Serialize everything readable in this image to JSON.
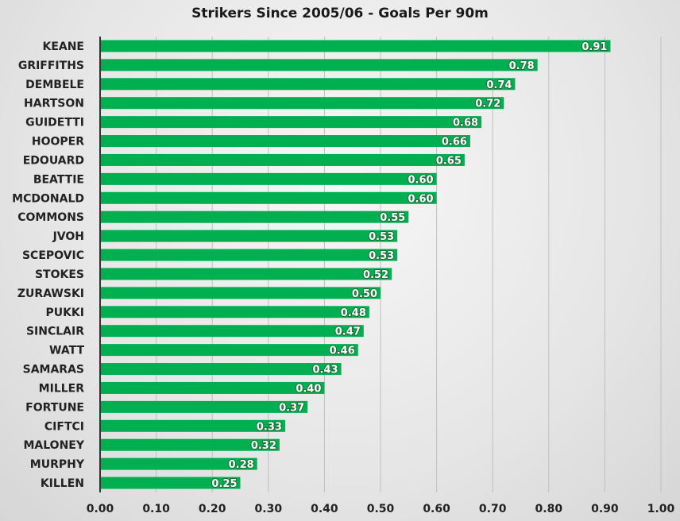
{
  "chart_data": {
    "type": "bar",
    "orientation": "horizontal",
    "title": "Strikers Since 2005/06 - Goals Per 90m",
    "xlabel": "",
    "ylabel": "",
    "categories": [
      "KEANE",
      "GRIFFITHS",
      "DEMBELE",
      "HARTSON",
      "GUIDETTI",
      "HOOPER",
      "EDOUARD",
      "BEATTIE",
      "MCDONALD",
      "COMMONS",
      "JVOH",
      "SCEPOVIC",
      "STOKES",
      "ZURAWSKI",
      "PUKKI",
      "SINCLAIR",
      "WATT",
      "SAMARAS",
      "MILLER",
      "FORTUNE",
      "CIFTCI",
      "MALONEY",
      "MURPHY",
      "KILLEN"
    ],
    "values": [
      0.91,
      0.78,
      0.74,
      0.72,
      0.68,
      0.66,
      0.65,
      0.6,
      0.6,
      0.55,
      0.53,
      0.53,
      0.52,
      0.5,
      0.48,
      0.47,
      0.46,
      0.43,
      0.4,
      0.37,
      0.33,
      0.32,
      0.28,
      0.25
    ],
    "value_labels": [
      "0.91",
      "0.78",
      "0.74",
      "0.72",
      "0.68",
      "0.66",
      "0.65",
      "0.60",
      "0.60",
      "0.55",
      "0.53",
      "0.53",
      "0.52",
      "0.50",
      "0.48",
      "0.47",
      "0.46",
      "0.43",
      "0.40",
      "0.37",
      "0.33",
      "0.32",
      "0.28",
      "0.25"
    ],
    "xlim": [
      0,
      1.0
    ],
    "xticks": [
      "0.00",
      "0.10",
      "0.20",
      "0.30",
      "0.40",
      "0.50",
      "0.60",
      "0.70",
      "0.80",
      "0.90",
      "1.00"
    ],
    "grid": true,
    "legend": "none",
    "bar_color": "#00b050",
    "axis_color": "#333333"
  }
}
